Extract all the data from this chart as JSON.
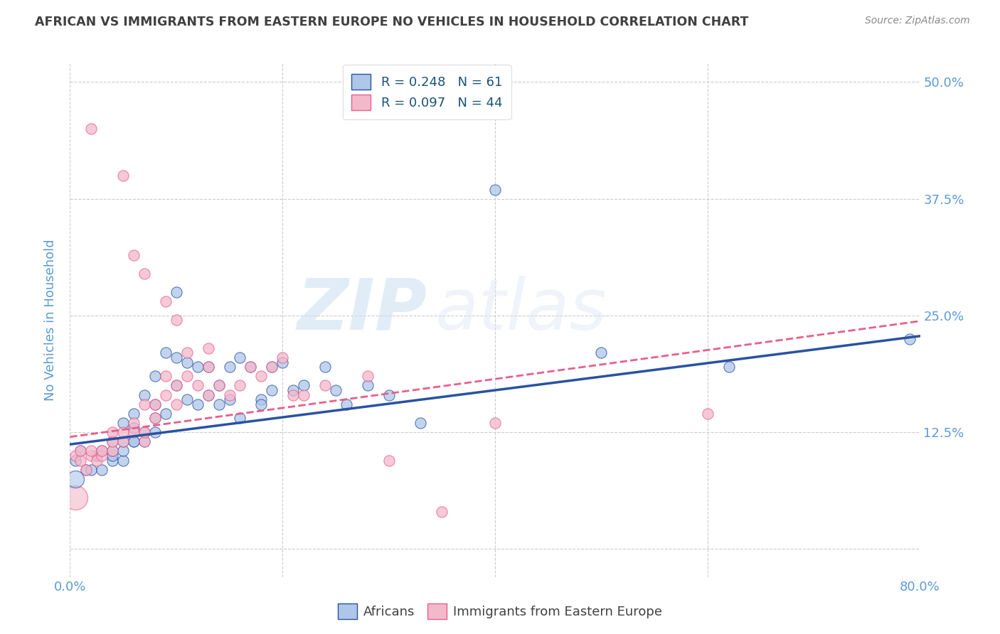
{
  "title": "AFRICAN VS IMMIGRANTS FROM EASTERN EUROPE NO VEHICLES IN HOUSEHOLD CORRELATION CHART",
  "source": "Source: ZipAtlas.com",
  "ylabel": "No Vehicles in Household",
  "xlim": [
    0.0,
    0.8
  ],
  "ylim": [
    -0.03,
    0.52
  ],
  "xticks": [
    0.0,
    0.2,
    0.4,
    0.6,
    0.8
  ],
  "xticklabels": [
    "0.0%",
    "",
    "",
    "",
    "80.0%"
  ],
  "yticks": [
    0.0,
    0.125,
    0.25,
    0.375,
    0.5
  ],
  "yticklabels": [
    "",
    "12.5%",
    "25.0%",
    "37.5%",
    "50.0%"
  ],
  "legend_labels": [
    "Africans",
    "Immigrants from Eastern Europe"
  ],
  "africans_color": "#aec6e8",
  "eastern_europe_color": "#f4b8cb",
  "africans_line_color": "#2952a3",
  "eastern_europe_line_color": "#e8608a",
  "watermark_zip": "ZIP",
  "watermark_atlas": "atlas",
  "R_africans": 0.248,
  "N_africans": 61,
  "R_eastern": 0.097,
  "N_eastern": 44,
  "africans_x": [
    0.005,
    0.01,
    0.015,
    0.02,
    0.025,
    0.03,
    0.03,
    0.04,
    0.04,
    0.04,
    0.04,
    0.05,
    0.05,
    0.05,
    0.05,
    0.06,
    0.06,
    0.06,
    0.06,
    0.07,
    0.07,
    0.07,
    0.08,
    0.08,
    0.08,
    0.08,
    0.09,
    0.09,
    0.1,
    0.1,
    0.1,
    0.11,
    0.11,
    0.12,
    0.12,
    0.13,
    0.13,
    0.14,
    0.14,
    0.15,
    0.15,
    0.16,
    0.16,
    0.17,
    0.18,
    0.18,
    0.19,
    0.19,
    0.2,
    0.21,
    0.22,
    0.24,
    0.25,
    0.26,
    0.28,
    0.3,
    0.33,
    0.4,
    0.5,
    0.62,
    0.79
  ],
  "africans_y": [
    0.095,
    0.105,
    0.085,
    0.085,
    0.1,
    0.085,
    0.105,
    0.095,
    0.1,
    0.105,
    0.115,
    0.095,
    0.105,
    0.115,
    0.135,
    0.115,
    0.115,
    0.13,
    0.145,
    0.115,
    0.125,
    0.165,
    0.125,
    0.14,
    0.155,
    0.185,
    0.145,
    0.21,
    0.175,
    0.205,
    0.275,
    0.16,
    0.2,
    0.155,
    0.195,
    0.165,
    0.195,
    0.155,
    0.175,
    0.16,
    0.195,
    0.14,
    0.205,
    0.195,
    0.16,
    0.155,
    0.17,
    0.195,
    0.2,
    0.17,
    0.175,
    0.195,
    0.17,
    0.155,
    0.175,
    0.165,
    0.135,
    0.385,
    0.21,
    0.195,
    0.225
  ],
  "eastern_x": [
    0.005,
    0.01,
    0.01,
    0.015,
    0.02,
    0.02,
    0.025,
    0.03,
    0.03,
    0.04,
    0.04,
    0.04,
    0.05,
    0.05,
    0.06,
    0.06,
    0.07,
    0.07,
    0.07,
    0.08,
    0.08,
    0.09,
    0.09,
    0.1,
    0.1,
    0.11,
    0.11,
    0.12,
    0.13,
    0.13,
    0.14,
    0.15,
    0.16,
    0.17,
    0.18,
    0.19,
    0.2,
    0.21,
    0.22,
    0.24,
    0.28,
    0.3,
    0.4,
    0.6
  ],
  "eastern_y": [
    0.1,
    0.095,
    0.105,
    0.085,
    0.1,
    0.105,
    0.095,
    0.1,
    0.105,
    0.105,
    0.115,
    0.125,
    0.115,
    0.125,
    0.125,
    0.135,
    0.115,
    0.125,
    0.155,
    0.14,
    0.155,
    0.165,
    0.185,
    0.155,
    0.175,
    0.185,
    0.21,
    0.175,
    0.165,
    0.195,
    0.175,
    0.165,
    0.175,
    0.195,
    0.185,
    0.195,
    0.205,
    0.165,
    0.165,
    0.175,
    0.185,
    0.095,
    0.135,
    0.145
  ],
  "eastern_outliers_x": [
    0.02,
    0.05,
    0.06,
    0.07,
    0.09,
    0.1,
    0.13,
    0.35
  ],
  "eastern_outliers_y": [
    0.45,
    0.4,
    0.315,
    0.295,
    0.265,
    0.245,
    0.215,
    0.04
  ],
  "background_color": "#ffffff",
  "grid_color": "#cccccc",
  "title_color": "#404040",
  "axis_label_color": "#5b9bd5",
  "tick_color": "#5b9bd5"
}
